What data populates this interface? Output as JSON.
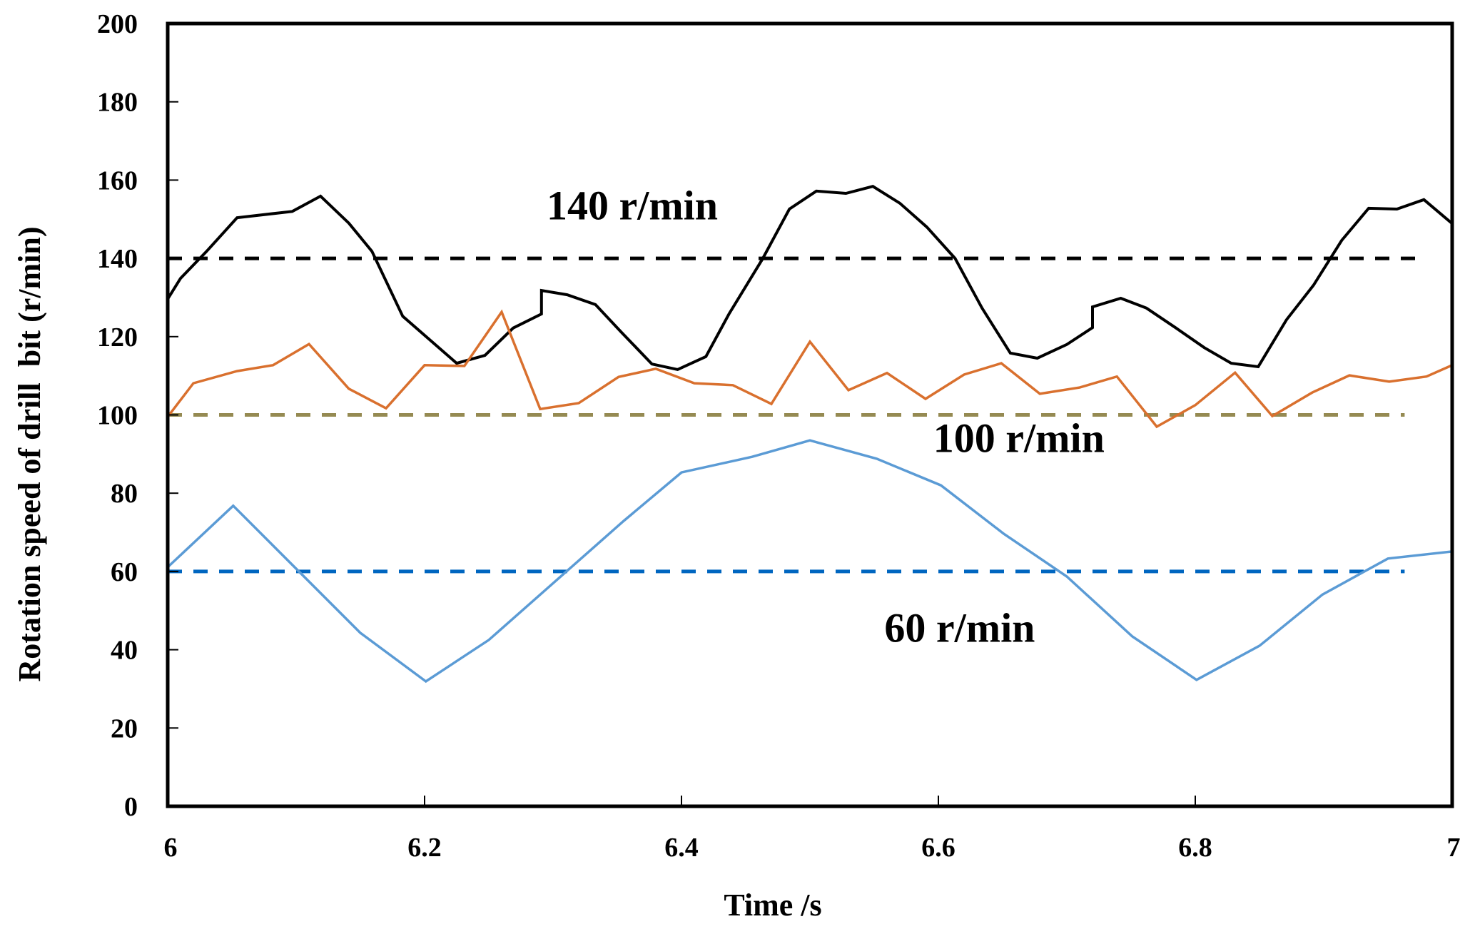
{
  "chart_data": {
    "type": "line",
    "title": "",
    "xlabel": "Time /s",
    "ylabel": "Rotation speed of drill  bit (r/min)",
    "xlim": [
      6,
      7
    ],
    "ylim": [
      0,
      200
    ],
    "xticks": [
      6,
      6.2,
      6.4,
      6.6,
      6.8,
      7
    ],
    "xtick_labels": [
      "6",
      "6.2",
      "6.4",
      "6.6",
      "6.8",
      "7"
    ],
    "yticks": [
      0,
      20,
      40,
      60,
      80,
      100,
      120,
      140,
      160,
      180,
      200
    ],
    "ytick_labels": [
      "0",
      "20",
      "40",
      "60",
      "80",
      "100",
      "120",
      "140",
      "160",
      "180",
      "200"
    ],
    "grid": false,
    "legend": "none",
    "series": [
      {
        "name": "140 r/min response",
        "color": "#000000",
        "style": "solid",
        "x": [
          6.0,
          6.01,
          6.03,
          6.054,
          6.097,
          6.119,
          6.141,
          6.159,
          6.183,
          6.225,
          6.247,
          6.269,
          6.291,
          6.291,
          6.311,
          6.333,
          6.353,
          6.377,
          6.397,
          6.419,
          6.437,
          6.463,
          6.484,
          6.505,
          6.528,
          6.549,
          6.57,
          6.591,
          6.613,
          6.634,
          6.656,
          6.677,
          6.7,
          6.72,
          6.72,
          6.742,
          6.762,
          6.785,
          6.807,
          6.828,
          6.849,
          6.871,
          6.892,
          6.914,
          6.935,
          6.957,
          6.978,
          7.0
        ],
        "y": [
          129.6,
          134.9,
          141.7,
          150.4,
          152.0,
          155.9,
          149.0,
          141.8,
          125.2,
          113.2,
          115.2,
          122.2,
          125.8,
          131.8,
          130.7,
          128.2,
          121.2,
          113.0,
          111.6,
          114.9,
          125.8,
          139.8,
          152.6,
          157.2,
          156.6,
          158.4,
          154.1,
          148.0,
          140.0,
          127.3,
          115.8,
          114.5,
          118.0,
          122.3,
          127.6,
          129.8,
          127.3,
          122.2,
          117.2,
          113.2,
          112.3,
          124.3,
          133.1,
          144.6,
          152.8,
          152.6,
          155.0,
          148.9
        ]
      },
      {
        "name": "100 r/min response",
        "color": "#D9702E",
        "style": "solid",
        "x": [
          6.0,
          6.02,
          6.054,
          6.082,
          6.11,
          6.141,
          6.17,
          6.2,
          6.231,
          6.26,
          6.29,
          6.32,
          6.351,
          6.38,
          6.41,
          6.44,
          6.47,
          6.5,
          6.53,
          6.56,
          6.59,
          6.62,
          6.649,
          6.679,
          6.71,
          6.739,
          6.77,
          6.8,
          6.831,
          6.86,
          6.891,
          6.92,
          6.951,
          6.98,
          7.0
        ],
        "y": [
          99.5,
          108.1,
          111.2,
          112.7,
          118.1,
          106.7,
          101.7,
          112.7,
          112.5,
          126.3,
          101.5,
          103.0,
          109.7,
          111.8,
          108.1,
          107.6,
          102.8,
          118.7,
          106.3,
          110.7,
          104.1,
          110.3,
          113.2,
          105.4,
          107.0,
          109.8,
          97.0,
          102.5,
          110.8,
          99.7,
          105.7,
          110.1,
          108.5,
          109.8,
          112.7
        ]
      },
      {
        "name": "60 r/min response",
        "color": "#5B9BD5",
        "style": "solid",
        "x": [
          6.0,
          6.051,
          6.15,
          6.201,
          6.25,
          6.355,
          6.4,
          6.455,
          6.5,
          6.552,
          6.602,
          6.651,
          6.7,
          6.751,
          6.801,
          6.85,
          6.899,
          6.95,
          7.0
        ],
        "y": [
          61.1,
          76.8,
          44.3,
          31.9,
          42.5,
          72.9,
          85.3,
          89.3,
          93.5,
          88.8,
          82.0,
          69.6,
          58.7,
          43.4,
          32.3,
          41.0,
          54.1,
          63.3,
          65.1
        ]
      }
    ],
    "reference_lines": [
      {
        "name": "140 r/min target",
        "value": 140,
        "x_range": [
          6.0,
          6.974
        ],
        "color": "#000000",
        "style": "dashed"
      },
      {
        "name": "100 r/min target",
        "value": 100,
        "x_range": [
          6.0,
          6.963
        ],
        "color": "#958A52",
        "style": "dashed"
      },
      {
        "name": "60 r/min target",
        "value": 60,
        "x_range": [
          6.0,
          6.963
        ],
        "color": "#0066C0",
        "style": "dashed"
      }
    ],
    "annotations": [
      {
        "text": "140 r/min",
        "x": 6.295,
        "y": 150
      },
      {
        "text": "100 r/min",
        "x": 6.596,
        "y": 90.5
      },
      {
        "text": "60 r/min",
        "x": 6.558,
        "y": 42
      }
    ]
  }
}
